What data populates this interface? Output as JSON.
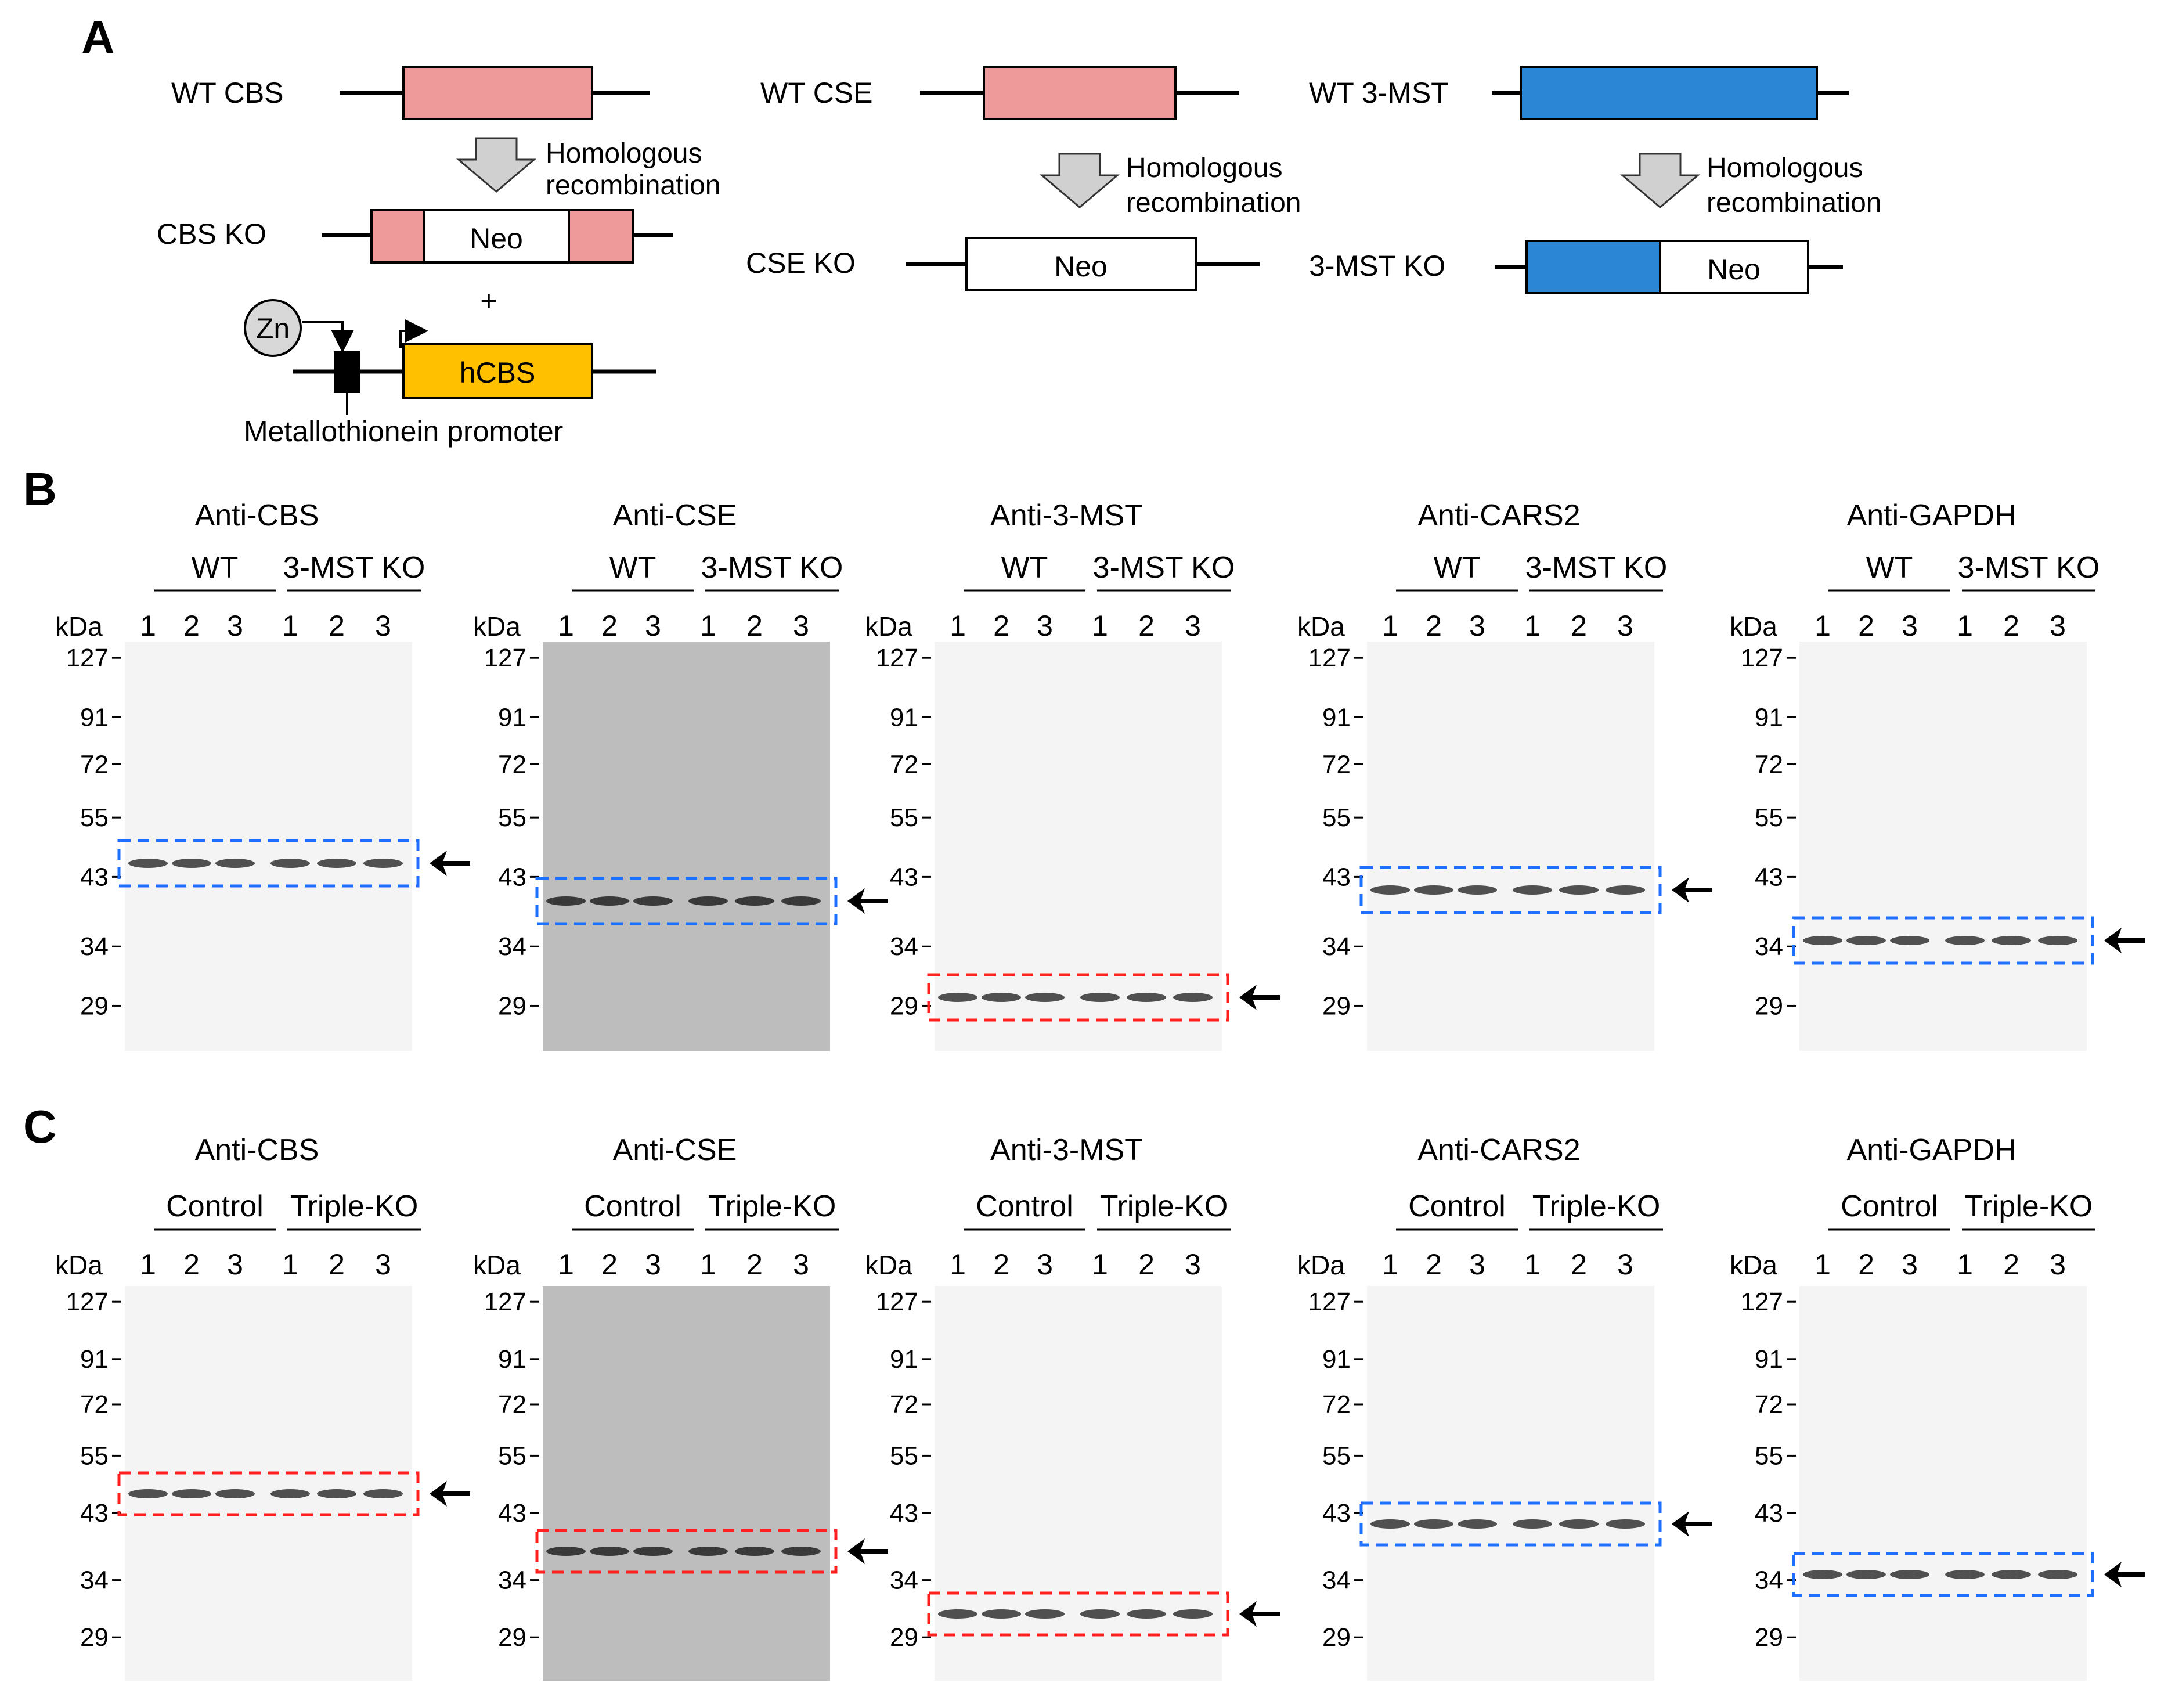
{
  "panels": {
    "A": {
      "label": "A",
      "constructs": {
        "wt_cbs": "WT CBS",
        "cbs_ko": "CBS KO",
        "wt_cse": "WT CSE",
        "cse_ko": "CSE KO",
        "wt_3mst": "WT 3-MST",
        "mst_ko": "3-MST KO"
      },
      "neo": "Neo",
      "homologous": "Homologous",
      "recombination": "recombination",
      "plus": "+",
      "zn": "Zn",
      "hcbs": "hCBS",
      "promoter": "Metallothionein promoter"
    },
    "B": {
      "label": "B",
      "groups": [
        "WT",
        "3-MST KO"
      ],
      "blots": [
        {
          "title": "Anti-CBS",
          "tone": "light",
          "box": "blue"
        },
        {
          "title": "Anti-CSE",
          "tone": "gray",
          "box": "blue"
        },
        {
          "title": "Anti-3-MST",
          "tone": "light",
          "box": "red"
        },
        {
          "title": "Anti-CARS2",
          "tone": "light",
          "box": "blue"
        },
        {
          "title": "Anti-GAPDH",
          "tone": "light",
          "box": "blue"
        }
      ]
    },
    "C": {
      "label": "C",
      "groups": [
        "Control",
        "Triple-KO"
      ],
      "blots": [
        {
          "title": "Anti-CBS",
          "tone": "light",
          "box": "red"
        },
        {
          "title": "Anti-CSE",
          "tone": "gray",
          "box": "red"
        },
        {
          "title": "Anti-3-MST",
          "tone": "light",
          "box": "red"
        },
        {
          "title": "Anti-CARS2",
          "tone": "light",
          "box": "blue"
        },
        {
          "title": "Anti-GAPDH",
          "tone": "light",
          "box": "blue"
        }
      ]
    }
  },
  "kda_label": "kDa",
  "lane_numbers": [
    "1",
    "2",
    "3"
  ],
  "markers": [
    "127",
    "91",
    "72",
    "55",
    "43",
    "34",
    "29"
  ],
  "colors": {
    "pink": "#ef9a9a",
    "blue": "#2b86d6",
    "orange": "#ffc000",
    "gray_membrane": "#bdbdbd",
    "light_membrane": "#f4f4f4",
    "dash_blue": "#1e6fff",
    "dash_red": "#ff2020"
  }
}
